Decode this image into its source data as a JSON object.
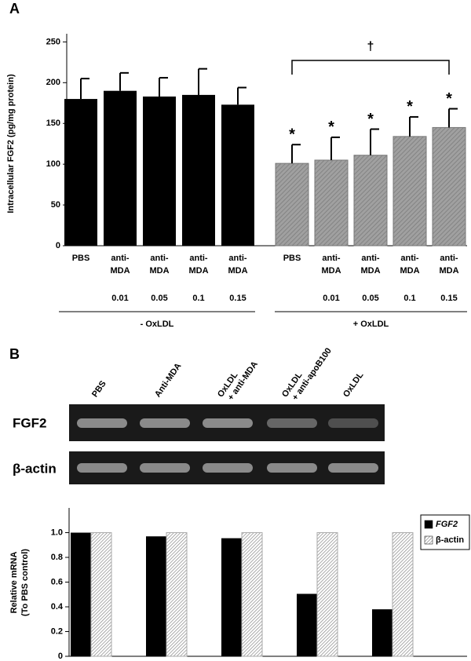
{
  "panel_labels": [
    "A",
    "B"
  ],
  "chart_data": [
    {
      "type": "bar",
      "ylabel": "Intracellular FGF2 (pg/mg protein)",
      "ylim": [
        0,
        260
      ],
      "yticks": [
        0,
        50,
        100,
        150,
        200,
        250
      ],
      "groups": [
        {
          "name": "- OxLDL",
          "color": "#000000",
          "categories": [
            "PBS",
            "anti-MDA",
            "anti-MDA",
            "anti-MDA",
            "anti-MDA"
          ],
          "doses": [
            null,
            "0.01",
            "0.05",
            "0.1",
            "0.15"
          ],
          "values": [
            180,
            190,
            183,
            185,
            173
          ],
          "errors": [
            25,
            22,
            23,
            32,
            21
          ]
        },
        {
          "name": "+ OxLDL",
          "color": "#a0a0a0",
          "categories": [
            "PBS",
            "anti-MDA",
            "anti-MDA",
            "anti-MDA",
            "anti-MDA"
          ],
          "doses": [
            null,
            "0.01",
            "0.05",
            "0.1",
            "0.15"
          ],
          "values": [
            101,
            105,
            111,
            134,
            145
          ],
          "errors": [
            23,
            28,
            32,
            24,
            23
          ],
          "markers": [
            "*",
            "*",
            "*",
            "*",
            "*"
          ]
        }
      ],
      "bracket_label": "†"
    },
    {
      "type": "bar",
      "ylabel": [
        "Relative mRNA",
        "(To PBS control)"
      ],
      "ylim": [
        0,
        1.2
      ],
      "yticks": [
        0,
        0.2,
        0.4,
        0.6,
        {
          "value": 0.8,
          "label": "0.8"
        },
        {
          "value": 1,
          "label": "1.0"
        }
      ],
      "categories": [
        null,
        null,
        null,
        null,
        null
      ],
      "legend": "right",
      "series": [
        {
          "name": "FGF2",
          "color": "#000000",
          "values": [
            1.0,
            0.97,
            0.955,
            0.505,
            0.38
          ]
        },
        {
          "name": "β-actin",
          "color": "#888888",
          "values": [
            1,
            1,
            1,
            1,
            1
          ]
        }
      ]
    }
  ],
  "gel": {
    "lanes": [
      "PBS",
      "Anti-MDA",
      [
        "OxLDL",
        "+ anti-MDA"
      ],
      [
        "OxLDL",
        "+ anti-apoB100"
      ],
      "OxLDL"
    ],
    "rows": [
      "FGF2",
      "β-actin"
    ]
  }
}
